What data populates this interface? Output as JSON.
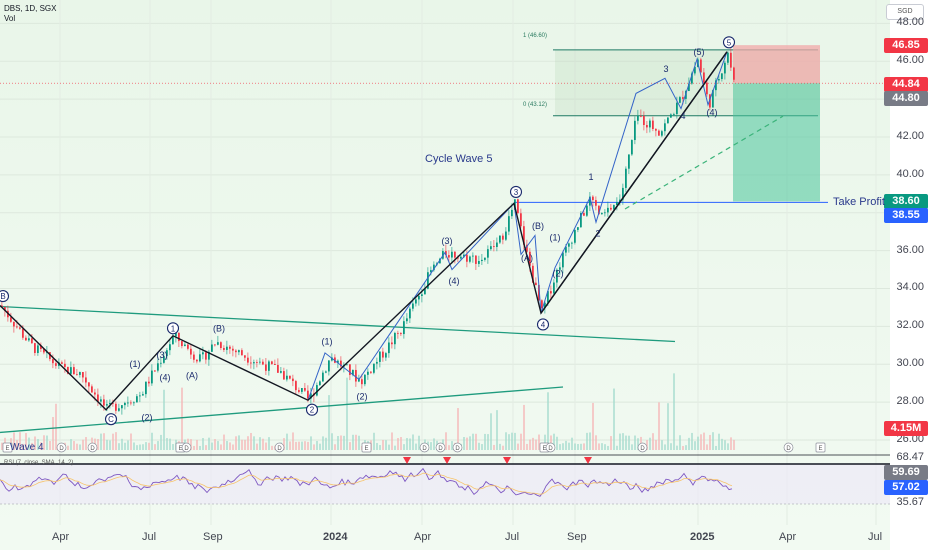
{
  "header": {
    "symbol": "DBS, 1D, SGX",
    "volume_label": "Vol"
  },
  "currency": "SGD",
  "chart_data": {
    "type": "candlestick",
    "title": "",
    "price_axis": {
      "range": [
        26,
        48.6
      ],
      "ticks": [
        "26.00",
        "28.00",
        "30.00",
        "32.00",
        "34.00",
        "36.00",
        "38.00",
        "40.00",
        "42.00",
        "44.00",
        "46.00",
        "48.00"
      ]
    },
    "time_axis": {
      "ticks": [
        "Apr",
        "Jul",
        "Sep",
        "2024",
        "Apr",
        "Jul",
        "Sep",
        "2025",
        "Apr",
        "Jul"
      ]
    },
    "price_badges": [
      {
        "value": "46.85",
        "color": "#f23645"
      },
      {
        "value": "44.84",
        "color": "#f23645"
      },
      {
        "value": "44.80",
        "color": "#787b86"
      },
      {
        "value": "38.60",
        "color": "#089981"
      },
      {
        "value": "38.55",
        "color": "#2962ff"
      },
      {
        "value": "4.15M",
        "color": "#f23645"
      }
    ],
    "wave_path": [
      [
        0,
        33.1
      ],
      [
        106,
        27.6
      ],
      [
        173,
        31.5
      ],
      [
        308,
        28.1
      ],
      [
        514,
        38.5
      ],
      [
        541,
        32.7
      ],
      [
        727,
        46.5
      ]
    ],
    "minor_path": [
      [
        308,
        28.1
      ],
      [
        325,
        30.6
      ],
      [
        359,
        29.2
      ],
      [
        445,
        35.9
      ],
      [
        452,
        35.0
      ],
      [
        514,
        38.5
      ],
      [
        521,
        35.8
      ],
      [
        535,
        36.8
      ],
      [
        541,
        32.7
      ],
      [
        555,
        35.1
      ],
      [
        590,
        38.8
      ],
      [
        596,
        37.5
      ],
      [
        636,
        44.3
      ],
      [
        665,
        45.1
      ],
      [
        681,
        43.5
      ],
      [
        697,
        46.1
      ],
      [
        708,
        43.7
      ],
      [
        727,
        46.5
      ]
    ],
    "key_points": [
      [
        0,
        33.1
      ],
      [
        30,
        31.0
      ],
      [
        60,
        29.8
      ],
      [
        80,
        29.5
      ],
      [
        106,
        27.6
      ],
      [
        140,
        28.4
      ],
      [
        173,
        31.5
      ],
      [
        200,
        30.2
      ],
      [
        215,
        31.2
      ],
      [
        250,
        30.3
      ],
      [
        280,
        29.6
      ],
      [
        308,
        28.1
      ],
      [
        330,
        30.4
      ],
      [
        360,
        29.1
      ],
      [
        400,
        31.8
      ],
      [
        430,
        34.9
      ],
      [
        445,
        35.9
      ],
      [
        480,
        35.5
      ],
      [
        500,
        36.6
      ],
      [
        514,
        38.5
      ],
      [
        525,
        36.0
      ],
      [
        541,
        32.7
      ],
      [
        560,
        35.5
      ],
      [
        590,
        38.8
      ],
      [
        600,
        37.7
      ],
      [
        620,
        38.8
      ],
      [
        636,
        43.1
      ],
      [
        660,
        42.3
      ],
      [
        680,
        44.0
      ],
      [
        697,
        46.1
      ],
      [
        708,
        43.7
      ],
      [
        727,
        46.5
      ],
      [
        733,
        44.84
      ]
    ],
    "wave_labels": [
      {
        "text": "B",
        "x": 1,
        "y": 33.6,
        "circled": true
      },
      {
        "text": "(1)",
        "x": 133,
        "y": 30.0
      },
      {
        "text": "(3)",
        "x": 160,
        "y": 30.5
      },
      {
        "text": "(4)",
        "x": 163,
        "y": 29.3
      },
      {
        "text": "(A)",
        "x": 190,
        "y": 29.4
      },
      {
        "text": "(B)",
        "x": 217,
        "y": 31.9
      },
      {
        "text": "1",
        "x": 171,
        "y": 31.9,
        "circled": true
      },
      {
        "text": "C",
        "x": 109,
        "y": 27.1,
        "circled": true
      },
      {
        "text": "(2)",
        "x": 145,
        "y": 27.2
      },
      {
        "text": "(1)",
        "x": 325,
        "y": 31.2
      },
      {
        "text": "2",
        "x": 310,
        "y": 27.6,
        "circled": true
      },
      {
        "text": "(2)",
        "x": 360,
        "y": 28.3
      },
      {
        "text": "(3)",
        "x": 445,
        "y": 36.5
      },
      {
        "text": "(4)",
        "x": 452,
        "y": 34.4
      },
      {
        "text": "3",
        "x": 514,
        "y": 39.1,
        "circled": true
      },
      {
        "text": "(B)",
        "x": 536,
        "y": 37.3
      },
      {
        "text": "(A)",
        "x": 525,
        "y": 35.6
      },
      {
        "text": "(1)",
        "x": 553,
        "y": 36.7
      },
      {
        "text": "(2)",
        "x": 556,
        "y": 34.8
      },
      {
        "text": "4",
        "x": 541,
        "y": 32.1,
        "circled": true
      },
      {
        "text": "1",
        "x": 589,
        "y": 39.9
      },
      {
        "text": "2",
        "x": 596,
        "y": 36.9
      },
      {
        "text": "3",
        "x": 664,
        "y": 45.6
      },
      {
        "text": "4",
        "x": 681,
        "y": 43.1
      },
      {
        "text": "(5)",
        "x": 697,
        "y": 46.5
      },
      {
        "text": "(4)",
        "x": 710,
        "y": 43.3
      },
      {
        "text": "5",
        "x": 727,
        "y": 47.0,
        "circled": true
      }
    ],
    "annotations": {
      "cycle_wave": "Cycle Wave 5",
      "wave4_label": "Wave 4",
      "take_profit": "Take Profit",
      "fib_high": "1 (46.60)",
      "fib_low": "0 (43.12)"
    },
    "rsi": {
      "label": "RSI (7, close, SMA, 14, 2)",
      "ticks": [
        "68.47",
        "35.67"
      ],
      "badges": [
        {
          "value": "59.69",
          "color": "#787b86"
        },
        {
          "value": "57.02",
          "color": "#2962ff"
        }
      ]
    }
  }
}
